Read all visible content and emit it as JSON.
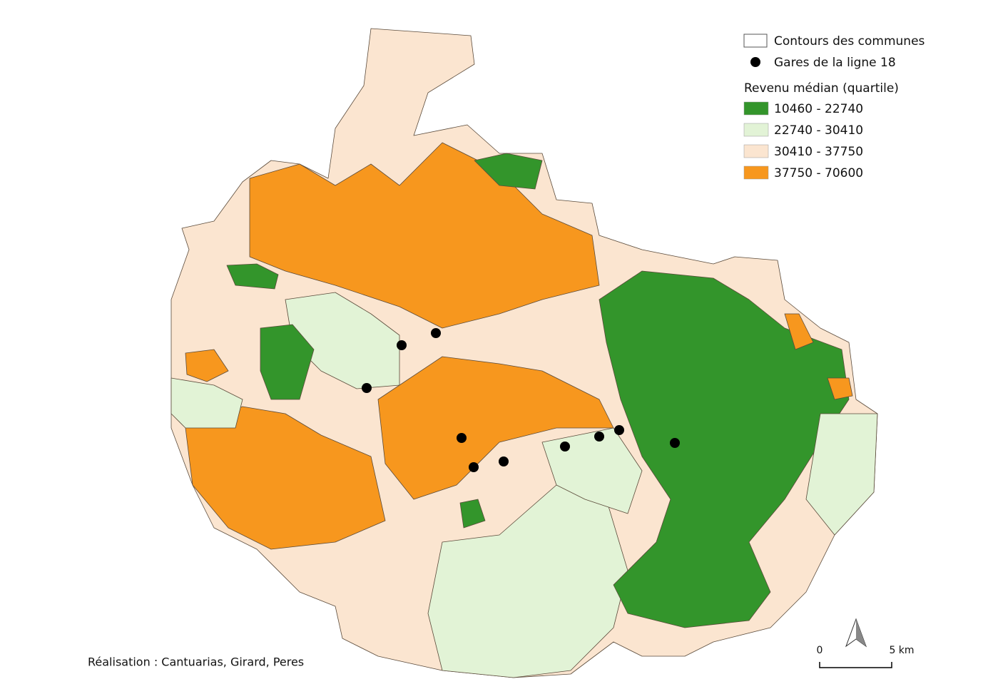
{
  "legend": {
    "outline_label": "Contours des communes",
    "stations_label": "Gares de la ligne 18",
    "title": "Revenu médian (quartile)",
    "classes": [
      {
        "label": "10460 - 22740",
        "color": "#33952b"
      },
      {
        "label": "22740 - 30410",
        "color": "#e2f3d6"
      },
      {
        "label": "30410 - 37750",
        "color": "#fbe5d0"
      },
      {
        "label": "37750 - 70600",
        "color": "#f7971e"
      }
    ]
  },
  "scale": {
    "start": "0",
    "end": "5 km"
  },
  "credit": "Réalisation : Cantuarias, Girard, Peres"
}
